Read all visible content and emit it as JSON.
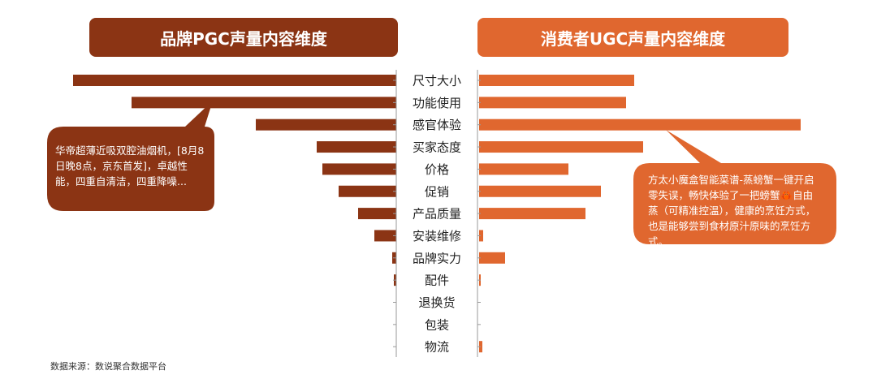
{
  "colors": {
    "pgc": "#8b3414",
    "ugc": "#e0672f",
    "axis": "#9a9a9a",
    "label": "#222222"
  },
  "header_left": "品牌PGC声量内容维度",
  "header_right": "消费者UGC声量内容维度",
  "callout_left": "华帝超薄近吸双腔油烟机，[8月8日晚8点，京东首发]，卓越性能，四重自清洁，四重降噪...",
  "callout_right": "方太小魔盒智能菜谱-蒸螃蟹一键开启零失误，畅快体验了一把螃蟹🦀自由蒸（可精准控温），健康的烹饪方式，也是能够尝到食材原汁原味的烹饪方式。",
  "source": "数据来源：数说聚合数据平台",
  "chart_data": {
    "type": "bar",
    "categories": [
      "尺寸大小",
      "功能使用",
      "感官体验",
      "买家态度",
      "价格",
      "促销",
      "产品质量",
      "安装维修",
      "品牌实力",
      "配件",
      "退换货",
      "包装",
      "物流"
    ],
    "series": [
      {
        "name": "品牌PGC声量内容维度",
        "values": [
          398,
          326,
          173,
          98,
          91,
          71,
          47,
          27,
          5,
          3,
          0,
          0,
          0
        ]
      },
      {
        "name": "消费者UGC声量内容维度",
        "values": [
          191,
          181,
          396,
          202,
          110,
          150,
          131,
          5,
          32,
          2,
          0,
          0,
          4
        ]
      }
    ]
  }
}
